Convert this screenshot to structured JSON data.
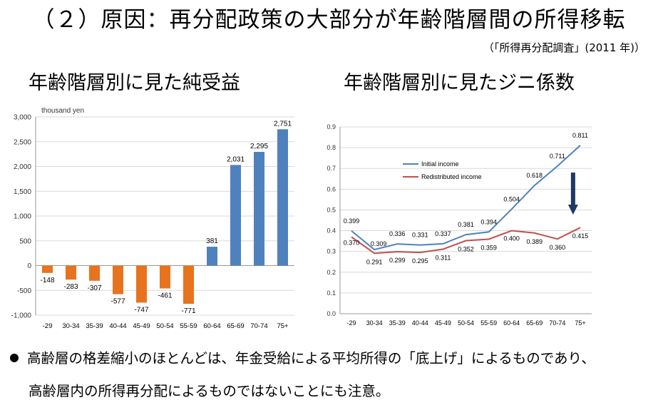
{
  "header": {
    "title": "（２）原因：再分配政策の大部分が年齢階層間の所得移転",
    "source": "（「所得再分配調査」(2011 年)）"
  },
  "left_chart_title": "年齢階層別に見た純受益",
  "right_chart_title": "年齢階層別に見たジニ係数",
  "notes": {
    "line1": "高齢層の格差縮小のほとんどは、年金受給による平均所得の「底上げ」によるものであり、",
    "line2": "高齢層内の所得再分配によるものではないことにも注意。"
  },
  "chart_data": [
    {
      "type": "bar",
      "unit_label": "thousand yen",
      "categories": [
        "-29",
        "30-34",
        "35-39",
        "40-44",
        "45-49",
        "50-54",
        "55-59",
        "60-64",
        "65-69",
        "70-74",
        "75+"
      ],
      "values": [
        -148,
        -283,
        -307,
        -577,
        -747,
        -461,
        -771,
        381,
        2031,
        2295,
        2751
      ],
      "value_labels": [
        "-148",
        "-283",
        "-307",
        "-577",
        "-747",
        "-461",
        "-771",
        "381",
        "2,031",
        "2,295",
        "2,751"
      ],
      "yticks": [
        "-1,000",
        "-500",
        "0",
        "500",
        "1,000",
        "1,500",
        "2,000",
        "2,500",
        "3,000"
      ],
      "ylim": [
        -1000,
        3000
      ],
      "colors": {
        "negative": "#E8731E",
        "positive": "#4F81BD"
      },
      "grid": true
    },
    {
      "type": "line",
      "categories": [
        "-29",
        "30-34",
        "35-39",
        "40-44",
        "45-49",
        "50-54",
        "55-59",
        "60-64",
        "65-69",
        "70-74",
        "75+"
      ],
      "series": [
        {
          "name": "Initial income",
          "color": "#4F81BD",
          "values": [
            0.399,
            0.309,
            0.336,
            0.331,
            0.337,
            0.381,
            0.394,
            0.504,
            0.618,
            0.711,
            0.811
          ],
          "labels": [
            "0.399",
            "0.309",
            "0.336",
            "0.331",
            "0.337",
            "0.381",
            "0.394",
            "0.504",
            "0.618",
            "0.711",
            "0.811"
          ]
        },
        {
          "name": "Redistributed income",
          "color": "#C0504D",
          "values": [
            0.37,
            0.291,
            0.299,
            0.295,
            0.311,
            0.352,
            0.359,
            0.4,
            0.389,
            0.36,
            0.415
          ],
          "labels": [
            "0.370",
            "0.291",
            "0.299",
            "0.295",
            "0.311",
            "0.352",
            "0.359",
            "0.400",
            "0.389",
            "0.360",
            "0.415"
          ]
        }
      ],
      "yticks": [
        "0.0",
        "0.1",
        "0.2",
        "0.3",
        "0.4",
        "0.5",
        "0.6",
        "0.7",
        "0.8",
        "0.9"
      ],
      "ylim": [
        0,
        0.9
      ],
      "grid": true,
      "legend_position": "upper-left",
      "annotation": {
        "type": "down-arrow",
        "category": "70-74",
        "color": "#1F3864"
      }
    }
  ]
}
